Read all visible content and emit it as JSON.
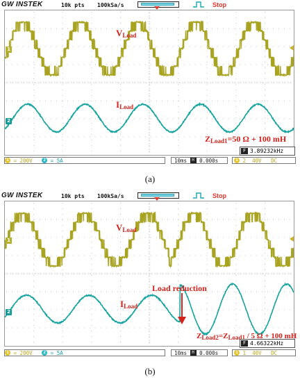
{
  "panels": [
    {
      "id": "a",
      "brand": "GW INSTEK",
      "record_length": "10k pts",
      "sample_rate": "100kSa/s",
      "run_status": "Stop",
      "ch1_label": "V",
      "ch1_label_sub": "Load",
      "ch2_label": "I",
      "ch2_label_sub": "Load",
      "annotation_main": "Z",
      "annotation_sub": "Load1",
      "annotation_rest": "=50 Ω + 100 mH",
      "annotation_event": "",
      "frequency": "3.89232kHz",
      "ch1_scale": "200V",
      "ch2_scale": "5A",
      "timebase": "10ms",
      "h_position": "0.000s",
      "trigger_source": "2",
      "trigger_level": "40V",
      "coupling": "DC",
      "caption": "(a)"
    },
    {
      "id": "b",
      "brand": "GW INSTEK",
      "record_length": "10k pts",
      "sample_rate": "100kSa/s",
      "run_status": "Stop",
      "ch1_label": "V",
      "ch1_label_sub": "Load",
      "ch2_label": "I",
      "ch2_label_sub": "Load",
      "annotation_main": "Z",
      "annotation_sub": "Load2",
      "annotation_mid": "=Z",
      "annotation_sub2": "Load1",
      "annotation_rest": " / 5 Ω + 100 mH",
      "annotation_event": "Load reduction",
      "frequency": "4.66322kHz",
      "ch1_scale": "200V",
      "ch2_scale": "5A",
      "timebase": "10ms",
      "h_position": "0.000s",
      "trigger_source": "1",
      "trigger_level": "40V",
      "coupling": "DC",
      "caption": "(b)"
    }
  ],
  "colors": {
    "ch1": "#a8a320",
    "ch2": "#14a3a0",
    "annotation": "#d4211a",
    "grid": "#b5b5b5"
  }
}
